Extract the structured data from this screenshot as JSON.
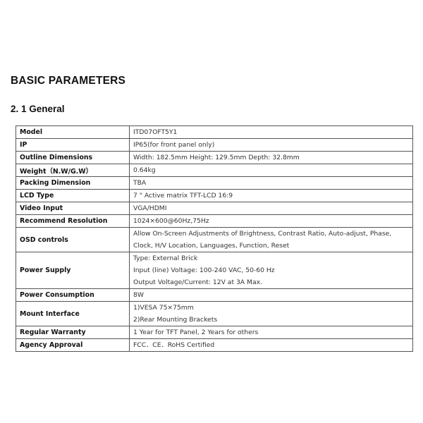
{
  "title": "BASIC PARAMETERS",
  "section": "2. 1 General",
  "rows": [
    {
      "label": "Model",
      "lines": [
        "ITD07OFT5Y1"
      ]
    },
    {
      "label": "IP",
      "lines": [
        "IP65(for front panel only)"
      ]
    },
    {
      "label": "Outline Dimensions",
      "lines": [
        "Width: 182.5mm   Height: 129.5mm   Depth: 32.8mm"
      ]
    },
    {
      "label": "Weight（N.W/G.W）",
      "lines": [
        "0.64kg"
      ]
    },
    {
      "label": "Packing Dimension",
      "lines": [
        "TBA"
      ]
    },
    {
      "label": "LCD Type",
      "lines": [
        "7 \" Active matrix TFT-LCD 16:9"
      ]
    },
    {
      "label": "Video Input",
      "lines": [
        "VGA/HDMI"
      ]
    },
    {
      "label": "Recommend Resolution",
      "lines": [
        "1024×600@60Hz,75Hz"
      ]
    },
    {
      "label": "OSD controls",
      "lines": [
        "Allow On-Screen Adjustments of Brightness, Contrast Ratio, Auto-adjust, Phase,",
        "Clock, H/V Location, Languages, Function, Reset"
      ]
    },
    {
      "label": "Power Supply",
      "lines": [
        "Type: External Brick",
        "Input (line) Voltage: 100-240 VAC, 50-60 Hz",
        "Output Voltage/Current: 12V at 3A Max."
      ]
    },
    {
      "label": "Power Consumption",
      "lines": [
        "8W"
      ]
    },
    {
      "label": "Mount Interface",
      "lines": [
        "1)VESA 75×75mm",
        "2)Rear Mounting Brackets"
      ]
    },
    {
      "label": "Regular Warranty",
      "lines": [
        "1 Year for TFT Panel, 2 Years for others"
      ]
    },
    {
      "label": "Agency Approval",
      "lines": [
        "FCC．CE．RoHS Certified"
      ]
    }
  ]
}
